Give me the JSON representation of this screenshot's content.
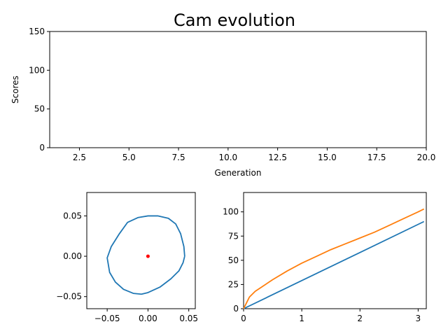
{
  "title": "Cam evolution",
  "colors": {
    "series1": "#1f77b4",
    "series2": "#ff7f0e",
    "center": "#ff0000",
    "axis": "#000000"
  },
  "chart_data": [
    {
      "type": "line",
      "title": "Cam evolution",
      "xlabel": "Generation",
      "ylabel": "Scores",
      "xlim": [
        1,
        20
      ],
      "ylim": [
        0,
        150
      ],
      "xticks": [
        "2.5",
        "5.0",
        "7.5",
        "10.0",
        "12.5",
        "15.0",
        "17.5",
        "20.0"
      ],
      "yticks": [
        "0",
        "50",
        "100",
        "150"
      ],
      "series": []
    },
    {
      "type": "line",
      "xlabel": "",
      "ylabel": "",
      "xlim": [
        -0.075,
        0.058
      ],
      "ylim": [
        -0.065,
        0.079
      ],
      "xticks": [
        "−0.05",
        "0.00",
        "0.05"
      ],
      "yticks": [
        "−0.05",
        "0.00",
        "0.05"
      ],
      "series": [
        {
          "x": [
            0.045,
            0.044,
            0.04,
            0.034,
            0.025,
            0.012,
            0.0,
            -0.012,
            -0.025,
            -0.035,
            -0.045,
            -0.05,
            -0.047,
            -0.04,
            -0.03,
            -0.018,
            -0.008,
            0.0,
            0.015,
            0.028,
            0.038,
            0.043,
            0.045
          ],
          "y": [
            0.0,
            0.012,
            0.028,
            0.04,
            0.047,
            0.05,
            0.05,
            0.048,
            0.042,
            0.028,
            0.012,
            -0.002,
            -0.02,
            -0.032,
            -0.041,
            -0.046,
            -0.047,
            -0.045,
            -0.038,
            -0.028,
            -0.018,
            -0.008,
            0.0
          ]
        }
      ],
      "points": [
        {
          "x": 0.0,
          "y": 0.0
        }
      ]
    },
    {
      "type": "line",
      "xlabel": "",
      "ylabel": "",
      "xlim": [
        0,
        3.14
      ],
      "ylim": [
        0,
        120
      ],
      "xticks": [
        "0",
        "1",
        "2",
        "3"
      ],
      "yticks": [
        "0",
        "25",
        "50",
        "75",
        "100"
      ],
      "series": [
        {
          "x": [
            0,
            3.1
          ],
          "y": [
            0,
            90
          ]
        },
        {
          "x": [
            0,
            0.05,
            0.1,
            0.2,
            0.3,
            0.5,
            0.75,
            1.0,
            1.25,
            1.5,
            1.75,
            2.0,
            2.25,
            2.5,
            2.75,
            3.0,
            3.1
          ],
          "y": [
            0,
            6,
            12,
            18,
            22,
            30,
            39,
            47,
            54,
            61,
            67,
            73,
            79,
            86,
            93,
            100,
            103
          ]
        }
      ]
    }
  ]
}
